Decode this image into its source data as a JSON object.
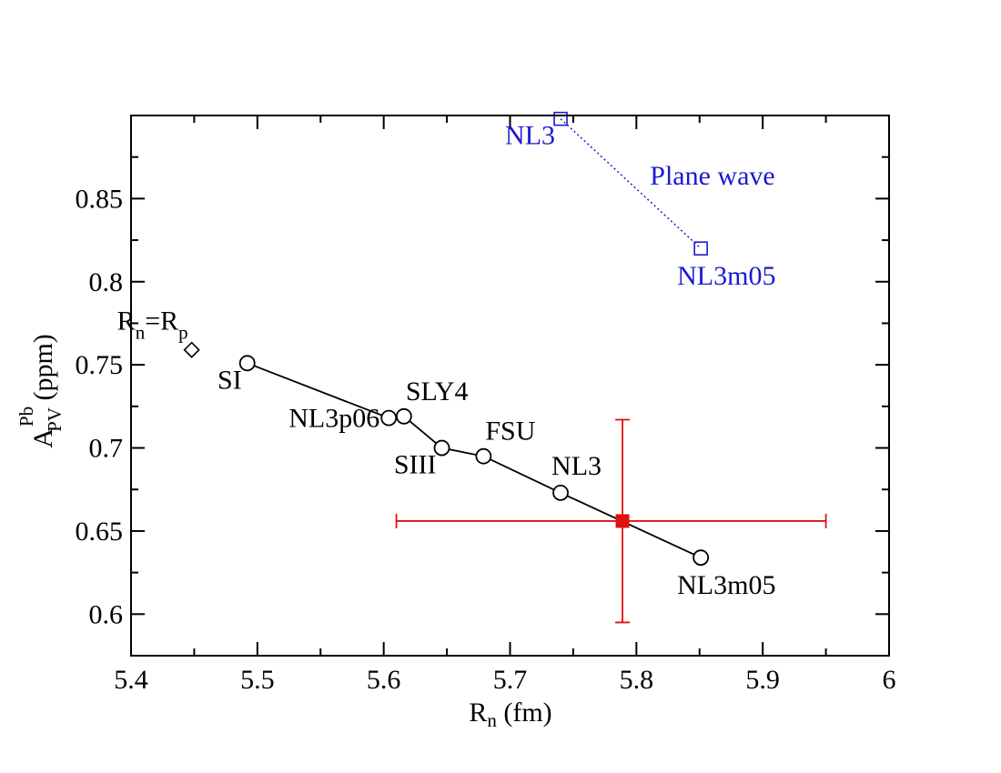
{
  "chart_data": {
    "type": "scatter",
    "xlabel": {
      "main": "R",
      "sub": "n",
      "tail": " (fm)"
    },
    "ylabel": {
      "main": "A",
      "sup": "Pb",
      "sub": "PV",
      "tail": "  (ppm)"
    },
    "xlim": [
      5.4,
      6.0
    ],
    "ylim": [
      0.575,
      0.9
    ],
    "x_ticks": [
      "5.4",
      "5.5",
      "5.6",
      "5.7",
      "5.8",
      "5.9",
      "6"
    ],
    "x_tick_values": [
      5.4,
      5.5,
      5.6,
      5.7,
      5.8,
      5.9,
      6.0
    ],
    "y_ticks": [
      "0.6",
      "0.65",
      "0.7",
      "0.75",
      "0.8",
      "0.85"
    ],
    "y_tick_values": [
      0.6,
      0.65,
      0.7,
      0.75,
      0.8,
      0.85
    ],
    "colors": {
      "axis": "#000000",
      "model": "#000000",
      "plane_wave": "#1a1ad0",
      "experiment": "#e01010"
    },
    "series": [
      {
        "name": "models",
        "marker": "circle",
        "line": "solid",
        "points": [
          {
            "label": "SI",
            "x": 5.492,
            "y": 0.751,
            "anchor": "sw"
          },
          {
            "label": "NL3p06",
            "x": 5.604,
            "y": 0.718,
            "anchor": "w"
          },
          {
            "label": "SLY4",
            "x": 5.616,
            "y": 0.719,
            "anchor": "ne"
          },
          {
            "label": "SIII",
            "x": 5.646,
            "y": 0.7,
            "anchor": "sw"
          },
          {
            "label": "FSU",
            "x": 5.679,
            "y": 0.695,
            "anchor": "ne"
          },
          {
            "label": "NL3",
            "x": 5.74,
            "y": 0.673,
            "anchor": "n"
          },
          {
            "label": "NL3m05",
            "x": 5.851,
            "y": 0.634,
            "anchor": "s"
          }
        ]
      },
      {
        "name": "Plane wave",
        "marker": "square",
        "line": "dotted",
        "points": [
          {
            "label": "NL3",
            "x": 5.74,
            "y": 0.898,
            "anchor": "sw"
          },
          {
            "label": "NL3m05",
            "x": 5.851,
            "y": 0.82,
            "anchor": "s"
          }
        ]
      },
      {
        "name": "reference",
        "marker": "diamond",
        "points": [
          {
            "label": {
              "a": "R",
              "a_sub": "n",
              "b": "=R",
              "b_sub": "p"
            },
            "x": 5.448,
            "y": 0.759,
            "anchor": "nw"
          }
        ]
      }
    ],
    "experiment": {
      "x": 5.789,
      "y": 0.656,
      "x_err": [
        0.179,
        0.161
      ],
      "y_err": [
        0.061,
        0.061
      ]
    },
    "annotations": [
      "Plane wave"
    ]
  }
}
